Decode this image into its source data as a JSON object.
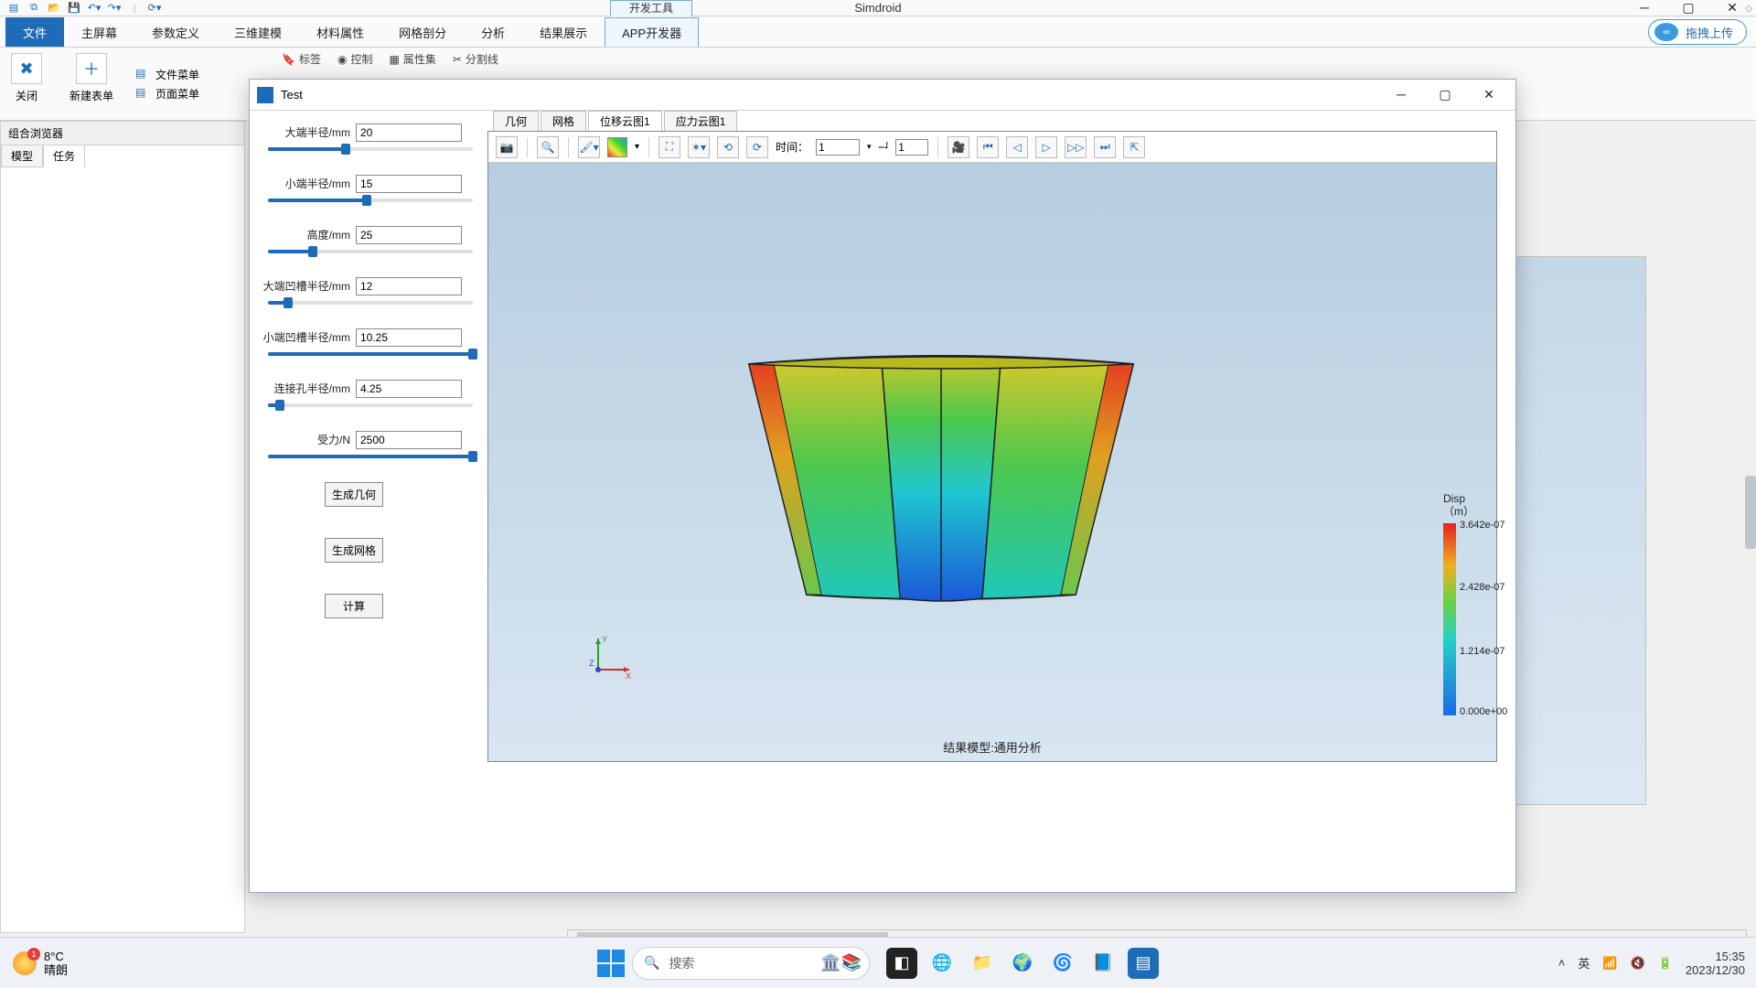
{
  "app": {
    "title": "Simdroid",
    "top_tab": "开发工具",
    "ribbon_tabs": {
      "file": "文件",
      "items": [
        "主屏幕",
        "参数定义",
        "三维建模",
        "材料属性",
        "网格剖分",
        "分析",
        "结果展示",
        "APP开发器"
      ],
      "active_index": 7
    },
    "upload_btn": "拖拽上传"
  },
  "ribbon": {
    "close": "关闭",
    "new_form": "新建表单",
    "file_menu": "文件菜单",
    "page_menu": "页面菜单",
    "overlay_items": [
      "标签",
      "控制",
      "属性集",
      "分割线"
    ]
  },
  "left_dock": {
    "title": "组合浏览器",
    "tabs": [
      "模型",
      "任务"
    ],
    "active_index": 1
  },
  "dialog": {
    "title": "Test",
    "params": [
      {
        "label": "大端半径/mm",
        "value": "20",
        "progress": 38
      },
      {
        "label": "小端半径/mm",
        "value": "15",
        "progress": 48
      },
      {
        "label": "高度/mm",
        "value": "25",
        "progress": 22
      },
      {
        "label": "大端凹槽半径/mm",
        "value": "12",
        "progress": 10
      },
      {
        "label": "小端凹槽半径/mm",
        "value": "10.25",
        "progress": 100
      },
      {
        "label": "连接孔半径/mm",
        "value": "4.25",
        "progress": 6
      },
      {
        "label": "受力/N",
        "value": "2500",
        "progress": 100
      }
    ],
    "buttons": {
      "geom": "生成几何",
      "mesh": "生成网格",
      "calc": "计算"
    },
    "vp_tabs": [
      "几何",
      "网格",
      "位移云图1",
      "应力云图1"
    ],
    "vp_active_index": 2,
    "time_label": "时间：",
    "time_value": "1",
    "scale_value": "1",
    "result_caption": "结果模型:通用分析",
    "legend": {
      "title1": "Disp",
      "title2": "（m）",
      "ticks": [
        "3.642e-07",
        "2.428e-07",
        "1.214e-07",
        "0.000e+00"
      ],
      "colors": {
        "top": "#e91f1f",
        "q1": "#f0b020",
        "mid": "#6fd23c",
        "q3": "#23d2c5",
        "bottom": "#1a6be8"
      }
    },
    "fea_colors": {
      "outer_left": "#e64020",
      "outer_right": "#e64020",
      "top_band": "#d8c82a",
      "mid_green": "#3cc23c",
      "cyan": "#1fc8d0",
      "blue": "#1a58d8",
      "outline": "#202020"
    },
    "triad": {
      "x": "X",
      "y": "Y",
      "z": "Z",
      "x_color": "#d03030",
      "y_color": "#2aa02a",
      "z_color": "#2a4ad0"
    }
  },
  "taskbar": {
    "weather_temp": "8°C",
    "weather_text": "晴朗",
    "weather_badge": "1",
    "search_placeholder": "搜索",
    "ime": "英",
    "time": "15:35",
    "date": "2023/12/30"
  },
  "colors": {
    "accent": "#1e6bb8",
    "panel": "#fafafa",
    "border": "#c8c8c8",
    "canvas_top": "#b6cde0",
    "canvas_bottom": "#d8e6f1"
  }
}
